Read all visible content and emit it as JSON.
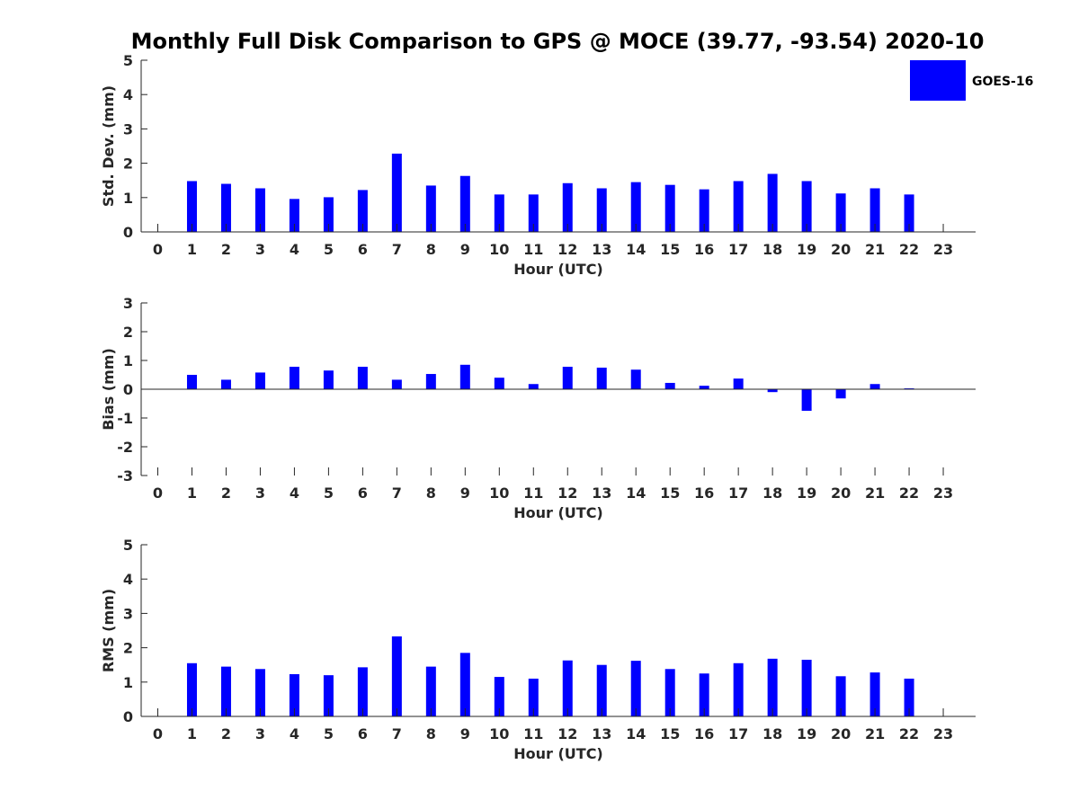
{
  "title": "Monthly Full Disk Comparison to GPS @ MOCE (39.77, -93.54) 2020-10",
  "legend": {
    "label": "GOES-16",
    "color": "#0000ff",
    "position": "top-right"
  },
  "chart_data": [
    {
      "type": "bar",
      "xlabel": "Hour (UTC)",
      "ylabel": "Std. Dev. (mm)",
      "ylim": [
        0,
        5
      ],
      "yticks": [
        "0",
        "1",
        "2",
        "3",
        "4",
        "5"
      ],
      "categories": [
        "0",
        "1",
        "2",
        "3",
        "4",
        "5",
        "6",
        "7",
        "8",
        "9",
        "10",
        "11",
        "12",
        "13",
        "14",
        "15",
        "16",
        "17",
        "18",
        "19",
        "20",
        "21",
        "22",
        "23"
      ],
      "series": [
        {
          "name": "GOES-16",
          "color": "#0000ff",
          "values": [
            null,
            1.48,
            1.4,
            1.27,
            0.96,
            1.01,
            1.22,
            2.28,
            1.35,
            1.63,
            1.09,
            1.09,
            1.42,
            1.27,
            1.45,
            1.37,
            1.24,
            1.48,
            1.69,
            1.48,
            1.12,
            1.27,
            1.09,
            null
          ]
        }
      ],
      "grid": false
    },
    {
      "type": "bar",
      "xlabel": "Hour (UTC)",
      "ylabel": "Bias (mm)",
      "ylim": [
        -3,
        3
      ],
      "yticks": [
        "-3",
        "-2",
        "-1",
        "0",
        "1",
        "2",
        "3"
      ],
      "categories": [
        "0",
        "1",
        "2",
        "3",
        "4",
        "5",
        "6",
        "7",
        "8",
        "9",
        "10",
        "11",
        "12",
        "13",
        "14",
        "15",
        "16",
        "17",
        "18",
        "19",
        "20",
        "21",
        "22",
        "23"
      ],
      "series": [
        {
          "name": "GOES-16",
          "color": "#0000ff",
          "values": [
            null,
            0.5,
            0.33,
            0.58,
            0.78,
            0.65,
            0.78,
            0.33,
            0.53,
            0.85,
            0.4,
            0.18,
            0.78,
            0.75,
            0.68,
            0.22,
            0.12,
            0.37,
            -0.1,
            -0.75,
            -0.32,
            0.18,
            0.03,
            null
          ]
        }
      ],
      "grid": false
    },
    {
      "type": "bar",
      "xlabel": "Hour (UTC)",
      "ylabel": "RMS (mm)",
      "ylim": [
        0,
        5
      ],
      "yticks": [
        "0",
        "1",
        "2",
        "3",
        "4",
        "5"
      ],
      "categories": [
        "0",
        "1",
        "2",
        "3",
        "4",
        "5",
        "6",
        "7",
        "8",
        "9",
        "10",
        "11",
        "12",
        "13",
        "14",
        "15",
        "16",
        "17",
        "18",
        "19",
        "20",
        "21",
        "22",
        "23"
      ],
      "series": [
        {
          "name": "GOES-16",
          "color": "#0000ff",
          "values": [
            null,
            1.55,
            1.45,
            1.38,
            1.23,
            1.2,
            1.43,
            2.33,
            1.45,
            1.85,
            1.15,
            1.1,
            1.63,
            1.5,
            1.62,
            1.38,
            1.25,
            1.55,
            1.68,
            1.65,
            1.17,
            1.28,
            1.1,
            null
          ]
        }
      ],
      "grid": false
    }
  ]
}
